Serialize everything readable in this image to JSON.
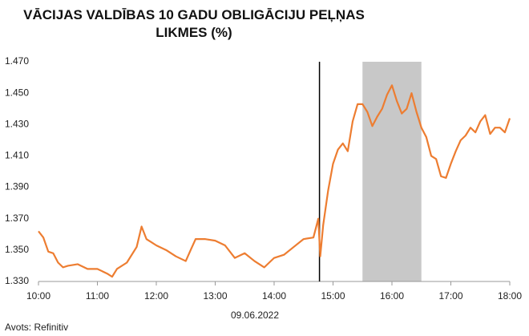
{
  "chart_data": {
    "type": "line",
    "title": "VĀCIJAS VALDĪBAS 10 GADU OBLIGĀCIJU PEĻŅAS LIKMES (%)",
    "x_label": "09.06.2022",
    "source": "Avots: Refinitiv",
    "color": "#ed7d31",
    "x": [
      10,
      10.083,
      10.167,
      10.25,
      10.333,
      10.417,
      10.5,
      10.667,
      10.833,
      11,
      11.167,
      11.25,
      11.333,
      11.5,
      11.667,
      11.75,
      11.833,
      11.917,
      12,
      12.167,
      12.333,
      12.5,
      12.583,
      12.667,
      12.833,
      13,
      13.167,
      13.333,
      13.5,
      13.667,
      13.833,
      14,
      14.167,
      14.333,
      14.5,
      14.667,
      14.75,
      14.783,
      14.833,
      14.917,
      15,
      15.083,
      15.167,
      15.25,
      15.333,
      15.417,
      15.5,
      15.583,
      15.667,
      15.75,
      15.833,
      15.917,
      16,
      16.083,
      16.167,
      16.25,
      16.333,
      16.417,
      16.5,
      16.583,
      16.667,
      16.75,
      16.833,
      16.917,
      17,
      17.083,
      17.167,
      17.25,
      17.333,
      17.417,
      17.5,
      17.583,
      17.667,
      17.75,
      17.833,
      17.917,
      18
    ],
    "values": [
      1.362,
      1.358,
      1.349,
      1.348,
      1.342,
      1.339,
      1.34,
      1.341,
      1.338,
      1.338,
      1.335,
      1.333,
      1.338,
      1.342,
      1.352,
      1.365,
      1.357,
      1.355,
      1.353,
      1.35,
      1.346,
      1.343,
      1.35,
      1.357,
      1.357,
      1.356,
      1.353,
      1.345,
      1.348,
      1.343,
      1.339,
      1.345,
      1.347,
      1.352,
      1.357,
      1.358,
      1.37,
      1.346,
      1.366,
      1.388,
      1.405,
      1.414,
      1.418,
      1.413,
      1.432,
      1.443,
      1.443,
      1.438,
      1.429,
      1.435,
      1.44,
      1.449,
      1.455,
      1.445,
      1.437,
      1.44,
      1.45,
      1.438,
      1.428,
      1.422,
      1.41,
      1.408,
      1.397,
      1.396,
      1.405,
      1.413,
      1.42,
      1.423,
      1.428,
      1.425,
      1.432,
      1.436,
      1.424,
      1.428,
      1.428,
      1.425,
      1.434
    ],
    "xlim": [
      10,
      18
    ],
    "xticks": [
      {
        "value": 10,
        "label": "10:00"
      },
      {
        "value": 11,
        "label": "11:00"
      },
      {
        "value": 12,
        "label": "12:00"
      },
      {
        "value": 13,
        "label": "13:00"
      },
      {
        "value": 14,
        "label": "14:00"
      },
      {
        "value": 15,
        "label": "15:00"
      },
      {
        "value": 16,
        "label": "16:00"
      },
      {
        "value": 17,
        "label": "17:00"
      },
      {
        "value": 18,
        "label": "18:00"
      }
    ],
    "ylim": [
      1.33,
      1.47
    ],
    "yticks": [
      {
        "value": 1.33,
        "label": "1.330"
      },
      {
        "value": 1.35,
        "label": "1.350"
      },
      {
        "value": 1.37,
        "label": "1.370"
      },
      {
        "value": 1.39,
        "label": "1.390"
      },
      {
        "value": 1.41,
        "label": "1.410"
      },
      {
        "value": 1.43,
        "label": "1.430"
      },
      {
        "value": 1.45,
        "label": "1.450"
      },
      {
        "value": 1.47,
        "label": "1.470"
      }
    ],
    "vlines": [
      14.77
    ],
    "vline_color": "#000000",
    "spans": [
      [
        15.5,
        16.5
      ]
    ],
    "span_color": "#c8c8c8",
    "grid": false
  }
}
